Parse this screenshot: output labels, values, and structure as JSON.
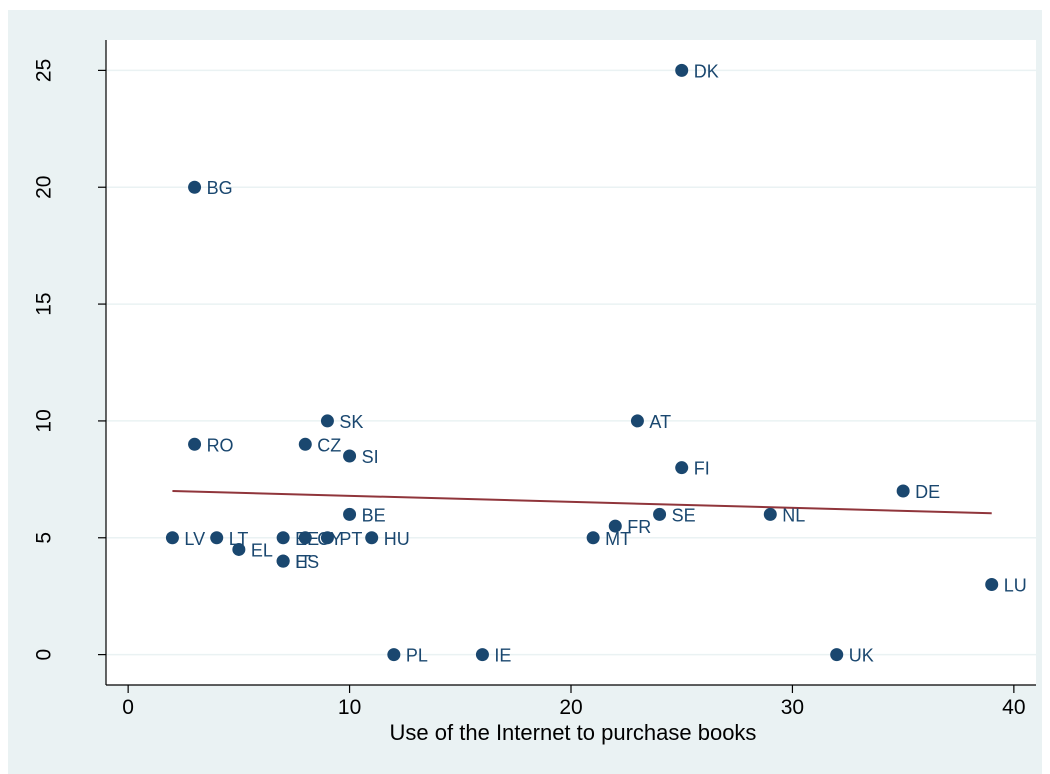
{
  "chart_data": {
    "type": "scatter",
    "title": "",
    "xlabel": "Use of the Internet to purchase books",
    "ylabel": "",
    "xlim": [
      -1,
      41
    ],
    "ylim": [
      -1.3,
      26.3
    ],
    "xticks": [
      0,
      10,
      20,
      30,
      40
    ],
    "yticks": [
      0,
      5,
      10,
      15,
      20,
      25
    ],
    "grid": "horizontal",
    "legend": "none",
    "colors": {
      "points": "#1a476f",
      "fit": "#90353b",
      "plot_background": "#ffffff",
      "outer_background": "#eaf2f3",
      "grid": "#eaf2f3"
    },
    "points": [
      {
        "label": "DK",
        "x": 25,
        "y": 25
      },
      {
        "label": "BG",
        "x": 3,
        "y": 20
      },
      {
        "label": "SK",
        "x": 9,
        "y": 10
      },
      {
        "label": "AT",
        "x": 23,
        "y": 10
      },
      {
        "label": "RO",
        "x": 3,
        "y": 9
      },
      {
        "label": "CZ",
        "x": 8,
        "y": 9
      },
      {
        "label": "SI",
        "x": 10,
        "y": 8.5
      },
      {
        "label": "FI",
        "x": 25,
        "y": 8
      },
      {
        "label": "DE",
        "x": 35,
        "y": 7
      },
      {
        "label": "BE",
        "x": 10,
        "y": 6
      },
      {
        "label": "SE",
        "x": 24,
        "y": 6
      },
      {
        "label": "NL",
        "x": 29,
        "y": 6
      },
      {
        "label": "FR",
        "x": 22,
        "y": 5.5
      },
      {
        "label": "LV",
        "x": 2,
        "y": 5
      },
      {
        "label": "LT",
        "x": 4,
        "y": 5
      },
      {
        "label": "EE",
        "x": 7,
        "y": 5
      },
      {
        "label": "CY",
        "x": 8,
        "y": 5
      },
      {
        "label": "PT",
        "x": 9,
        "y": 5
      },
      {
        "label": "HU",
        "x": 11,
        "y": 5
      },
      {
        "label": "MT",
        "x": 21,
        "y": 5
      },
      {
        "label": "EL",
        "x": 5,
        "y": 4.5
      },
      {
        "label": "IT",
        "x": 7,
        "y": 4
      },
      {
        "label": "ES",
        "x": 7,
        "y": 4
      },
      {
        "label": "LU",
        "x": 39,
        "y": 3
      },
      {
        "label": "PL",
        "x": 12,
        "y": 0
      },
      {
        "label": "IE",
        "x": 16,
        "y": 0
      },
      {
        "label": "UK",
        "x": 32,
        "y": 0
      }
    ],
    "fit_line": {
      "x": [
        2,
        39
      ],
      "y": [
        7.0,
        6.05
      ]
    }
  }
}
